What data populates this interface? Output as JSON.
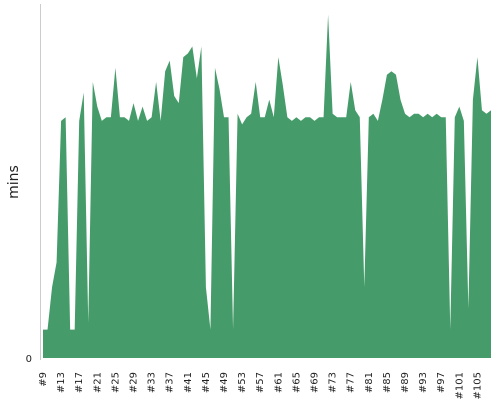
{
  "chart_data": {
    "type": "area",
    "title": "",
    "xlabel": "",
    "ylabel": "mins",
    "color": "#469b6a",
    "y_tick_labels": [
      "0"
    ],
    "ylim": [
      0,
      100
    ],
    "grid": false,
    "x_tick_labels": [
      "#9",
      "#13",
      "#17",
      "#21",
      "#25",
      "#29",
      "#33",
      "#37",
      "#41",
      "#45",
      "#49",
      "#53",
      "#57",
      "#61",
      "#65",
      "#69",
      "#73",
      "#77",
      "#81",
      "#85",
      "#89",
      "#93",
      "#97",
      "#101",
      "#105"
    ],
    "x": [
      "#9",
      "#10",
      "#11",
      "#12",
      "#13",
      "#14",
      "#15",
      "#16",
      "#17",
      "#18",
      "#19",
      "#20",
      "#21",
      "#22",
      "#23",
      "#24",
      "#25",
      "#26",
      "#27",
      "#28",
      "#29",
      "#30",
      "#31",
      "#32",
      "#33",
      "#34",
      "#35",
      "#36",
      "#37",
      "#38",
      "#39",
      "#40",
      "#41",
      "#42",
      "#43",
      "#44",
      "#45",
      "#46",
      "#47",
      "#48",
      "#49",
      "#50",
      "#51",
      "#52",
      "#53",
      "#54",
      "#55",
      "#56",
      "#57",
      "#58",
      "#59",
      "#60",
      "#61",
      "#62",
      "#63",
      "#64",
      "#65",
      "#66",
      "#67",
      "#68",
      "#69",
      "#70",
      "#71",
      "#72",
      "#73",
      "#74",
      "#75",
      "#76",
      "#77",
      "#78",
      "#79",
      "#80",
      "#81",
      "#82",
      "#83",
      "#84",
      "#85",
      "#86",
      "#87",
      "#88",
      "#89",
      "#90",
      "#91",
      "#92",
      "#93",
      "#94",
      "#95",
      "#96",
      "#97",
      "#98",
      "#99",
      "#100",
      "#101",
      "#102",
      "#103",
      "#104",
      "#105",
      "#106",
      "#107",
      "#108"
    ],
    "values": [
      8,
      8,
      20,
      27,
      67,
      68,
      8,
      8,
      67,
      75,
      10,
      78,
      71,
      67,
      68,
      68,
      82,
      68,
      68,
      67,
      72,
      67,
      71,
      67,
      68,
      78,
      67,
      81,
      84,
      74,
      72,
      85,
      86,
      88,
      79,
      88,
      20,
      8,
      82,
      76,
      68,
      68,
      8,
      69,
      66,
      68,
      69,
      78,
      68,
      68,
      73,
      68,
      85,
      77,
      68,
      67,
      68,
      67,
      68,
      68,
      67,
      68,
      68,
      97,
      69,
      68,
      68,
      68,
      78,
      70,
      68,
      20,
      68,
      69,
      67,
      73,
      80,
      81,
      80,
      73,
      69,
      68,
      69,
      69,
      68,
      69,
      68,
      69,
      68,
      68,
      8,
      68,
      71,
      67,
      14,
      73,
      85,
      70,
      69,
      70
    ]
  }
}
